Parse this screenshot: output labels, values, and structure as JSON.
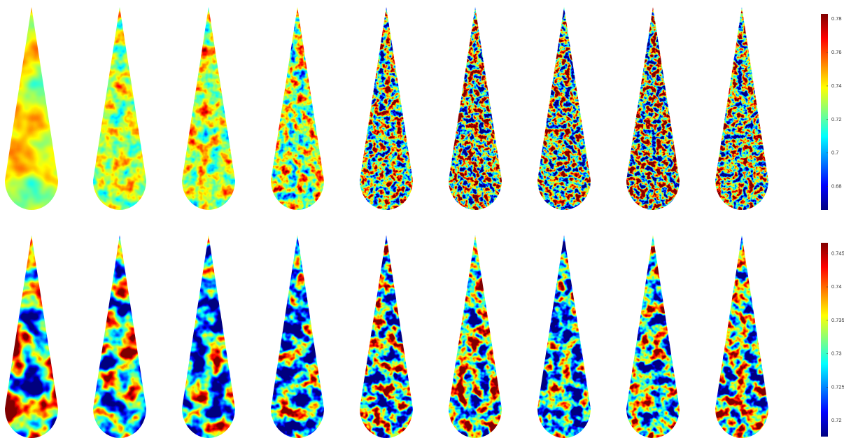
{
  "chart_data": [
    {
      "type": "colorbar",
      "colormap": "jet",
      "ylim": [
        0.666,
        0.783
      ],
      "yticks": [
        0.68,
        0.7,
        0.72,
        0.74,
        0.76,
        0.78
      ]
    },
    {
      "type": "colorbar",
      "colormap": "jet",
      "ylim": [
        0.7176,
        0.7466
      ],
      "yticks": [
        0.72,
        0.725,
        0.73,
        0.735,
        0.74,
        0.745
      ]
    }
  ]
}
